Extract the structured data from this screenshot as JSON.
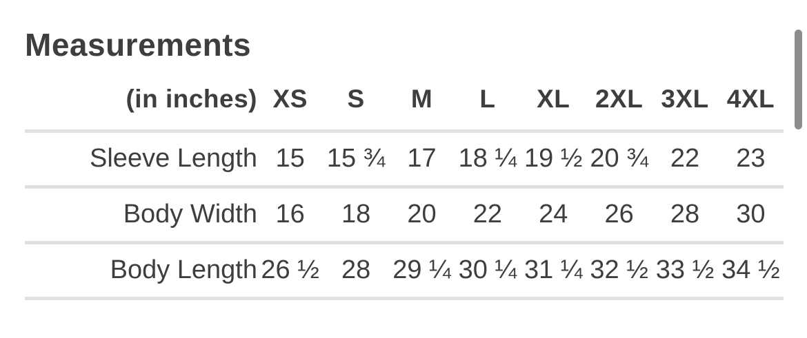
{
  "page": {
    "title": "Measurements"
  },
  "table": {
    "unit_label": "(in inches)",
    "sizes": [
      "XS",
      "S",
      "M",
      "L",
      "XL",
      "2XL",
      "3XL",
      "4XL"
    ],
    "rows": [
      {
        "label": "Sleeve Length",
        "values": [
          "15",
          "15 ¾",
          "17",
          "18 ¼",
          "19 ½",
          "20 ¾",
          "22",
          "23"
        ]
      },
      {
        "label": "Body Width",
        "values": [
          "16",
          "18",
          "20",
          "22",
          "24",
          "26",
          "28",
          "30"
        ]
      },
      {
        "label": "Body Length",
        "values": [
          "26 ½",
          "28",
          "29 ¼",
          "30 ¼",
          "31 ¼",
          "32 ½",
          "33 ½",
          "34 ½"
        ]
      }
    ]
  },
  "colors": {
    "text": "#3e3e40",
    "divider": "#e1e1e4",
    "scrollbar": "#8d8d8d",
    "background": "#ffffff"
  }
}
